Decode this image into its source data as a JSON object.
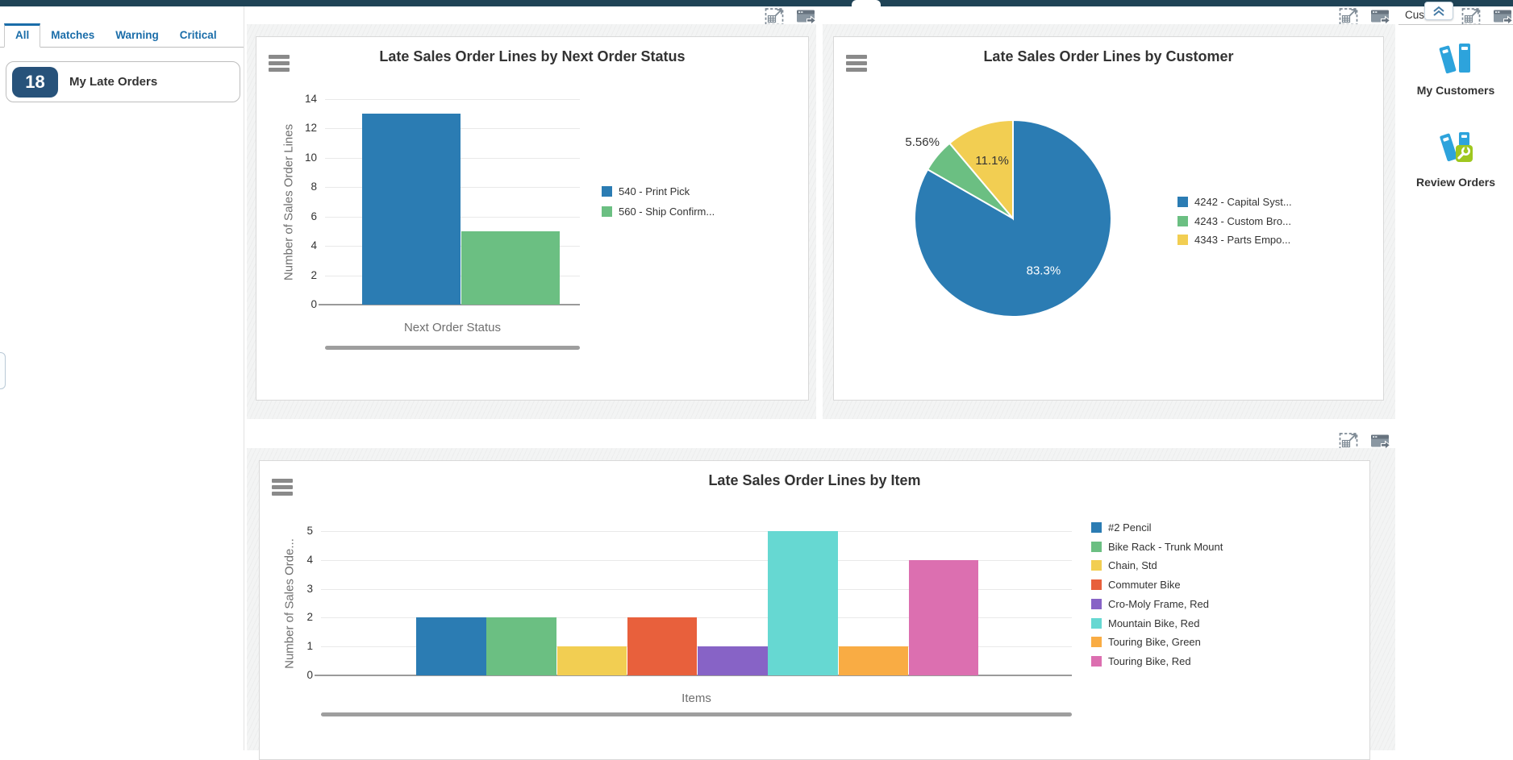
{
  "header": {
    "right_panel_title": "Cust...",
    "topbar_color": "#1f4356"
  },
  "sidebar": {
    "tabs": [
      {
        "label": "All",
        "active": true
      },
      {
        "label": "Matches",
        "active": false
      },
      {
        "label": "Warning",
        "active": false
      },
      {
        "label": "Critical",
        "active": false
      }
    ],
    "late_orders": {
      "count": "18",
      "label": "My Late Orders"
    }
  },
  "right_panel": {
    "items": [
      {
        "label": "My Customers",
        "icon": "customer-books-icon"
      },
      {
        "label": "Review Orders",
        "icon": "review-orders-icon"
      }
    ]
  },
  "chart_data": [
    {
      "id": "next-order-status",
      "type": "bar",
      "title": "Late Sales Order Lines by Next Order Status",
      "xlabel": "Next Order Status",
      "ylabel": "Number of Sales Order Lines",
      "ylim": [
        0,
        14
      ],
      "ytick_step": 2,
      "grid": true,
      "legend_position": "right",
      "series": [
        {
          "name": "540 - Print Pick",
          "value": 13,
          "color": "#2b7cb3"
        },
        {
          "name": "560 - Ship Confirm...",
          "value": 5,
          "color": "#6bbf82"
        }
      ]
    },
    {
      "id": "customer",
      "type": "pie",
      "title": "Late Sales Order Lines by Customer",
      "legend_position": "right",
      "slices": [
        {
          "name": "4242 - Capital Syst...",
          "pct": 83.3,
          "label": "83.3%",
          "color": "#2b7cb3",
          "label_inside": true,
          "label_color": "#ffffff"
        },
        {
          "name": "4243 - Custom Bro...",
          "pct": 5.56,
          "label": "5.56%",
          "color": "#6bbf82",
          "label_inside": false,
          "label_color": "#333333"
        },
        {
          "name": "4343 - Parts Empo...",
          "pct": 11.1,
          "label": "11.1%",
          "color": "#f2ce52",
          "label_inside": true,
          "label_color": "#333333"
        }
      ]
    },
    {
      "id": "item",
      "type": "bar",
      "title": "Late Sales Order Lines by Item",
      "xlabel": "Items",
      "ylabel": "Number of Sales Orde...",
      "ylim": [
        0,
        5
      ],
      "ytick_step": 1,
      "grid": true,
      "legend_position": "right",
      "series": [
        {
          "name": "#2 Pencil",
          "value": 2,
          "color": "#2b7cb3"
        },
        {
          "name": "Bike Rack - Trunk Mount",
          "value": 2,
          "color": "#6bbf82"
        },
        {
          "name": "Chain, Std",
          "value": 1,
          "color": "#f2ce52"
        },
        {
          "name": "Commuter Bike",
          "value": 2,
          "color": "#e8603c"
        },
        {
          "name": "Cro-Moly Frame, Red",
          "value": 1,
          "color": "#8763c6"
        },
        {
          "name": "Mountain Bike, Red",
          "value": 5,
          "color": "#66d8d2"
        },
        {
          "name": "Touring Bike, Green",
          "value": 1,
          "color": "#f9ac44"
        },
        {
          "name": "Touring Bike, Red",
          "value": 4,
          "color": "#dc6fb0"
        }
      ]
    }
  ]
}
